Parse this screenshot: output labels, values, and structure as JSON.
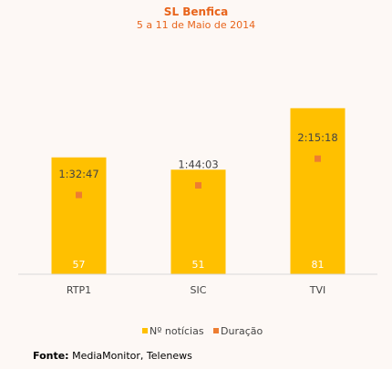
{
  "chart_data": {
    "type": "bar",
    "title": "SL Benfica",
    "subtitle": "5 a 11 de Maio de 2014",
    "categories": [
      "RTP1",
      "SIC",
      "TVI"
    ],
    "series": [
      {
        "name": "Nº notícias",
        "type": "bar",
        "values": [
          57,
          51,
          81
        ],
        "color": "#ffc000"
      },
      {
        "name": "Duração",
        "type": "scatter",
        "values": [
          "1:32:47",
          "1:44:03",
          "2:15:18"
        ],
        "color": "#ed7d31"
      }
    ],
    "legend": "bottom",
    "grid": false
  },
  "source": {
    "label": "Fonte:",
    "text": "MediaMonitor, Telenews"
  },
  "colors": {
    "title": "#e8641b",
    "subtitle": "#e8641b",
    "bar": "#ffc000",
    "marker": "#ed7d31",
    "bar_label": "#ffffff",
    "text": "#444444"
  }
}
